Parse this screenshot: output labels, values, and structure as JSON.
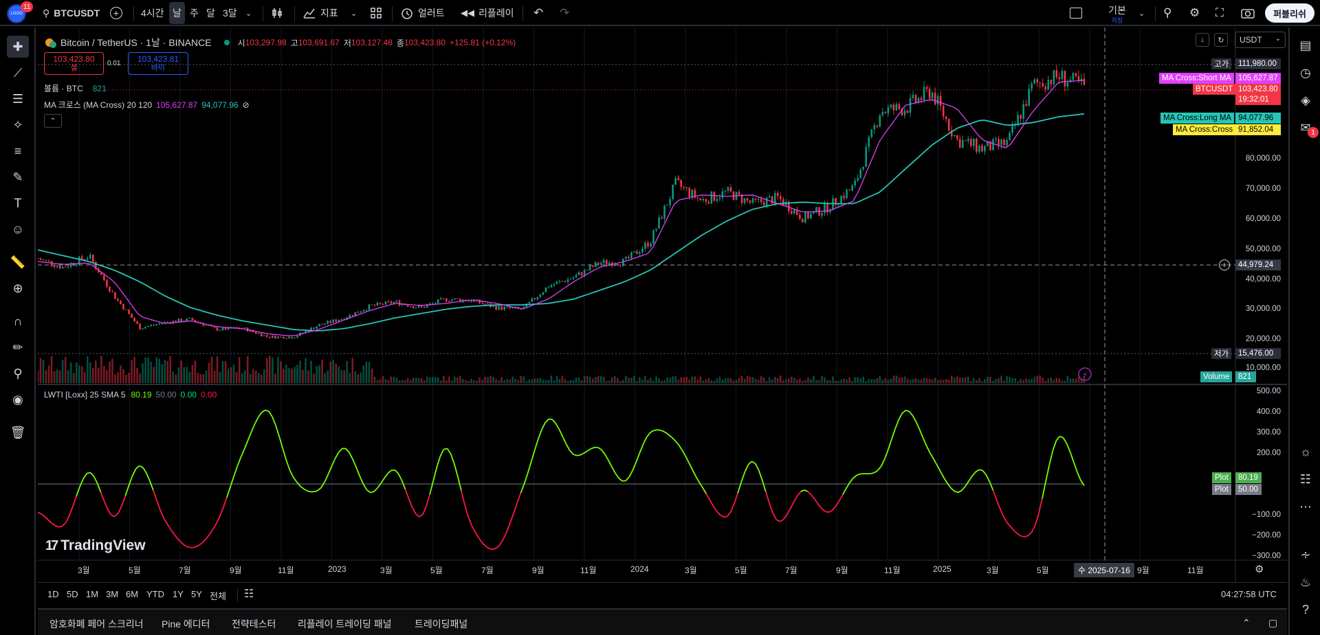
{
  "topbar": {
    "avatar_badge": "11",
    "symbol": "BTCUSDT",
    "intervals": [
      "4시간",
      "날",
      "주",
      "달",
      "3달"
    ],
    "active_interval": "날",
    "indicators_label": "지표",
    "alert_label": "얼러트",
    "replay_label": "리플레이",
    "layout_name": "기본",
    "layout_sub": "저장",
    "publish_label": "퍼블리쉬"
  },
  "legend": {
    "title": "Bitcoin / TetherUS · 1날 · BINANCE",
    "o_label": "시",
    "o_value": "103,297.98",
    "h_label": "고",
    "h_value": "103,691.67",
    "l_label": "저",
    "l_value": "103,127.48",
    "c_label": "종",
    "c_value": "103,423.80",
    "change": "+125.81 (+0.12%)",
    "sell_price": "103,423.80",
    "sell_label": "셀",
    "spread": "0.01",
    "buy_price": "103,423.81",
    "buy_label": "바이",
    "volume_label": "볼륨 · BTC",
    "volume_value": "821",
    "ma_label": "MA 크로스 (MA Cross) 20 120",
    "ma_short": "105,627.87",
    "ma_long": "94,077.96",
    "ma_icon": "⊘",
    "lwti_label": "LWTI [Loxx] 25 SMA 5",
    "lwti_v1": "80.19",
    "lwti_v2": "50.00",
    "lwti_v3": "0.00",
    "lwti_v4": "0.00"
  },
  "chart_controls": {
    "currency": "USDT"
  },
  "price_tags": {
    "high_label": "고가",
    "high_value": "111,980.00",
    "ma_short_label": "MA Cross:Short MA",
    "ma_short_value": "105,627.87",
    "symbol_label": "BTCUSDT",
    "symbol_value": "103,423.80",
    "countdown": "19:32:01",
    "ma_long_label": "MA Cross:Long MA",
    "ma_long_value": "94,077.96",
    "ma_cross_label": "MA Cross:Cross",
    "ma_cross_value": "91,852.04",
    "crosshair_value": "44,979.24",
    "low_label": "저가",
    "low_value": "15,476.00",
    "volume_label": "Volume",
    "volume_value": "821",
    "plot1_label": "Plot",
    "plot1_value": "80.19",
    "plot2_label": "Plot",
    "plot2_value": "50.00"
  },
  "price_axis": [
    "80,000.00",
    "70,000.00",
    "60,000.00",
    "50,000.00",
    "40,000.00",
    "30,000.00",
    "20,000.00",
    "10,000.00"
  ],
  "osc_axis": [
    "500.00",
    "400.00",
    "300.00",
    "200.00",
    "−100.00",
    "−200.00",
    "−300.00"
  ],
  "time_axis": [
    "3월",
    "5월",
    "7월",
    "9월",
    "11월",
    "2023",
    "3월",
    "5월",
    "7월",
    "9월",
    "11월",
    "2024",
    "3월",
    "5월",
    "7월",
    "9월",
    "11월",
    "2025",
    "3월",
    "5월",
    "9월",
    "11월"
  ],
  "time_cursor": "수 2025-07-16",
  "branding": "TradingView",
  "bottom": {
    "ranges": [
      "1D",
      "5D",
      "1M",
      "3M",
      "6M",
      "YTD",
      "1Y",
      "5Y",
      "전체"
    ],
    "clock": "04:27:58 UTC"
  },
  "panels": [
    "암호화폐 페어 스크리너",
    "Pine 에디터",
    "전략테스터",
    "리플레이 트레이딩 패널",
    "트레이딩패널"
  ],
  "right_badge": "1",
  "colors": {
    "up": "#089981",
    "down": "#f23645",
    "ma_short": "#e040fb",
    "ma_long": "#26c6b6",
    "osc_up": "#76ff03",
    "osc_down": "#ff1744"
  },
  "chart_data": {
    "type": "line",
    "ylim": [
      10000,
      112000
    ],
    "x": [
      "2022-02",
      "2022-03",
      "2022-04",
      "2022-05",
      "2022-06",
      "2022-07",
      "2022-08",
      "2022-09",
      "2022-10",
      "2022-11",
      "2022-12",
      "2023-01",
      "2023-02",
      "2023-03",
      "2023-04",
      "2023-05",
      "2023-06",
      "2023-07",
      "2023-08",
      "2023-09",
      "2023-10",
      "2023-11",
      "2023-12",
      "2024-01",
      "2024-02",
      "2024-03",
      "2024-04",
      "2024-05",
      "2024-06",
      "2024-07",
      "2024-08",
      "2024-09",
      "2024-10",
      "2024-11",
      "2024-12",
      "2025-01",
      "2025-02",
      "2025-03",
      "2025-04",
      "2025-05",
      "2025-06",
      "2025-07"
    ],
    "series": [
      {
        "values": [
          44000,
          41000,
          45000,
          31000,
          20000,
          22000,
          23000,
          19500,
          20000,
          17000,
          16800,
          21000,
          23500,
          27500,
          29000,
          27000,
          30000,
          29500,
          27000,
          26500,
          34500,
          37500,
          42500,
          43000,
          50000,
          70000,
          64000,
          67000,
          63000,
          65000,
          58000,
          62000,
          69000,
          95000,
          96000,
          102000,
          85000,
          82000,
          84000,
          104000,
          107000,
          103400
        ]
      },
      {
        "values": [
          43000,
          42000,
          42500,
          36000,
          24000,
          21500,
          22500,
          20500,
          19800,
          18000,
          17200,
          19500,
          22800,
          26000,
          28500,
          27800,
          28500,
          29800,
          28500,
          26500,
          30000,
          36000,
          41000,
          43000,
          46000,
          64000,
          66000,
          65500,
          66000,
          63000,
          60000,
          60500,
          64000,
          85000,
          97000,
          99000,
          96000,
          85000,
          82000,
          95000,
          105000,
          105600
        ]
      },
      {
        "values": [
          47000,
          45000,
          43000,
          40000,
          36000,
          31000,
          27000,
          24500,
          22500,
          21000,
          19500,
          19000,
          19800,
          21500,
          23500,
          25000,
          26500,
          27500,
          28000,
          28000,
          28500,
          30000,
          33000,
          36000,
          40000,
          46000,
          52000,
          57000,
          61000,
          63000,
          63500,
          63000,
          63000,
          67000,
          75000,
          83000,
          89000,
          92000,
          90000,
          91000,
          93000,
          94000
        ]
      }
    ]
  },
  "osc_data": {
    "type": "line",
    "ylim": [
      -300,
      500
    ],
    "baseline": 50,
    "values": [
      -40,
      -100,
      140,
      -60,
      170,
      -80,
      -200,
      -90,
      220,
      420,
      120,
      60,
      250,
      50,
      150,
      -60,
      250,
      -100,
      -200,
      70,
      380,
      220,
      250,
      100,
      320,
      280,
      80,
      -60,
      190,
      -80,
      60,
      -40,
      120,
      160,
      420,
      220,
      50,
      150,
      -90,
      -120,
      300,
      80
    ]
  }
}
